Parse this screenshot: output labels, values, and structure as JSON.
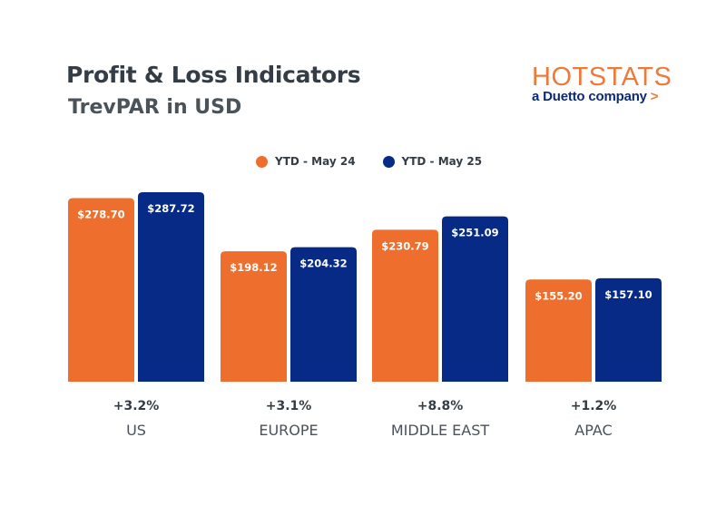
{
  "header": {
    "title": "Profit & Loss Indicators",
    "subtitle": "TrevPAR in USD"
  },
  "logo": {
    "brand": "HOTSTATS",
    "tagline": "a Duetto company",
    "tagline_arrow": ">",
    "brand_color": "#ee7a3a",
    "tagline_color": "#0d2a7a"
  },
  "chart_data": {
    "type": "bar",
    "title": "Profit & Loss Indicators",
    "subtitle": "TrevPAR in USD",
    "xlabel": "",
    "ylabel": "",
    "ylim": [
      0,
      287.72
    ],
    "grid": false,
    "legend_position": "top-center",
    "categories": [
      "US",
      "EUROPE",
      "MIDDLE EAST",
      "APAC"
    ],
    "series": [
      {
        "name": "YTD - May 24",
        "color": "#ee6f2d",
        "values": [
          278.7,
          198.12,
          230.79,
          155.2
        ],
        "labels": [
          "$278.70",
          "$198.12",
          "$230.79",
          "$155.20"
        ]
      },
      {
        "name": "YTD - May 25",
        "color": "#062a85",
        "values": [
          287.72,
          204.32,
          251.09,
          157.1
        ],
        "labels": [
          "$287.72",
          "$204.32",
          "$251.09",
          "$157.10"
        ]
      }
    ],
    "changes": [
      "+3.2%",
      "+3.1%",
      "+8.8%",
      "+1.2%"
    ]
  }
}
